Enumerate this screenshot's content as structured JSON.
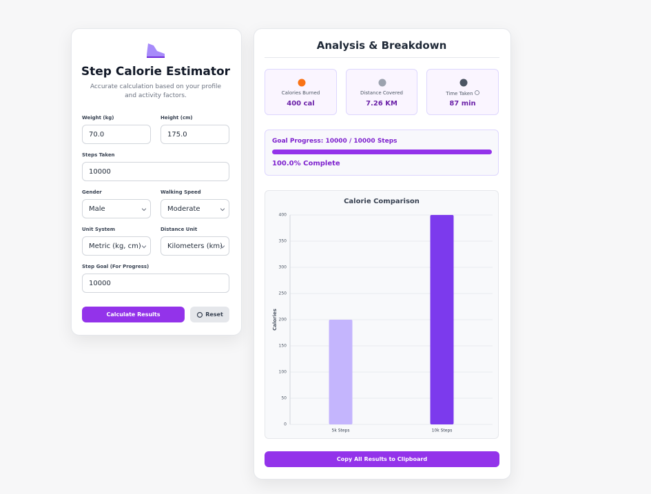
{
  "left": {
    "title": "Step Calorie Estimator",
    "subtitle": "Accurate calculation based on your profile and activity factors.",
    "fields": [
      {
        "label": "Weight (kg)",
        "value": "70.0"
      },
      {
        "label": "Height (cm)",
        "value": "175.0"
      },
      {
        "label": "Steps Taken",
        "value": "10000"
      },
      {
        "label": "Gender",
        "value": "Male"
      },
      {
        "label": "Walking Speed",
        "value": "Moderate"
      },
      {
        "label": "Unit System",
        "value": "Metric (kg, cm)"
      },
      {
        "label": "Distance Unit",
        "value": "Kilometers (km)"
      },
      {
        "label": "Step Goal (For Progress)",
        "value": "10000"
      }
    ],
    "calculate_button": "Calculate Results",
    "reset_button": "Reset"
  },
  "right": {
    "title": "Analysis & Breakdown",
    "stats": [
      {
        "label": "Calories Burned",
        "value": "400 cal"
      },
      {
        "label": "Distance Covered",
        "value": "7.26 KM"
      },
      {
        "label": "Time Taken",
        "value": "87 min"
      }
    ],
    "goal_label": "Goal Progress: 10000 / 10000 Steps",
    "goal_status": "100.0% Complete",
    "copy_button": "Copy All Results to Clipboard"
  },
  "chart_data": {
    "type": "bar",
    "title": "Calorie Comparison",
    "y_label": "Calories",
    "categories": [
      "5k Steps",
      "10k Steps"
    ],
    "values": [
      200,
      400
    ],
    "colors": [
      "#c4b5fd",
      "#7c3aed"
    ],
    "ylim": [
      0,
      400
    ],
    "yticks": [
      0,
      50,
      100,
      150,
      200,
      250,
      300,
      350,
      400
    ],
    "grid": true
  }
}
